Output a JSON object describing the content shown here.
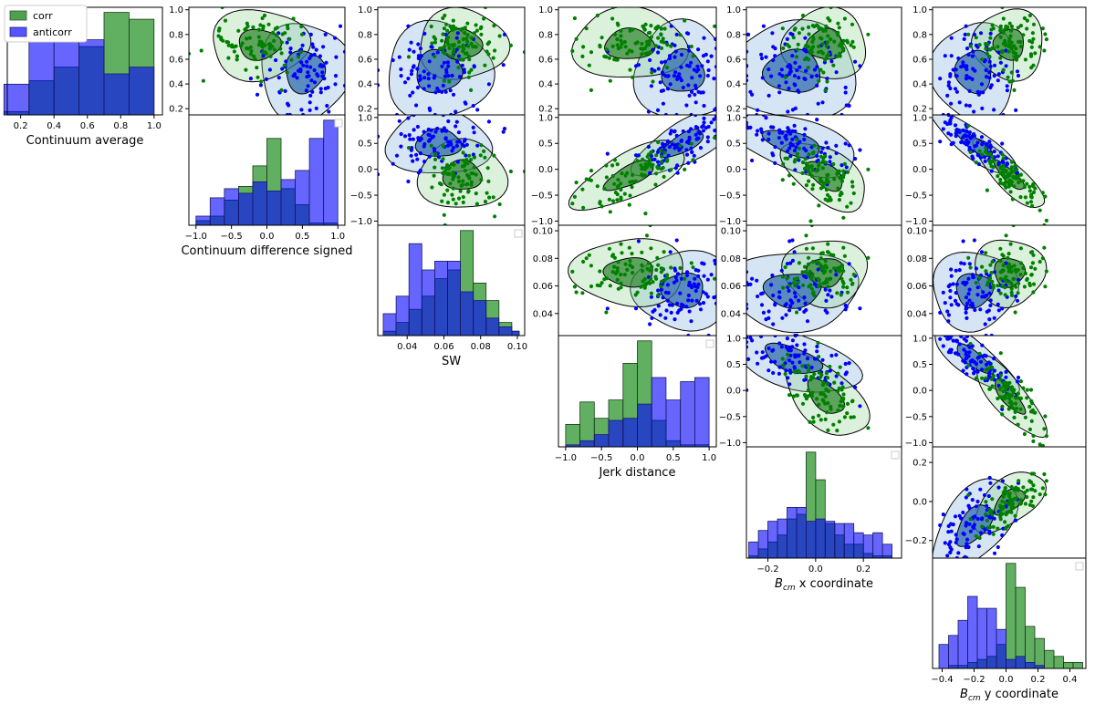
{
  "colors": {
    "corr": "#008000",
    "anticorr": "#0000ff",
    "corr_fill": "#4fa04f",
    "anticorr_fill": "#5555ff"
  },
  "legend": {
    "entries": [
      "corr",
      "anticorr"
    ]
  },
  "chart_data": [
    {
      "type": "bar",
      "variable": "continuum_average",
      "xlabel": "Continuum average",
      "xlim": [
        0.12,
        1.05
      ],
      "ticks": [
        0.2,
        0.4,
        0.6,
        0.8,
        1.0
      ],
      "tick_labels": [
        "0.2",
        "0.4",
        "0.6",
        "0.8",
        "1.0"
      ],
      "bin_edges": [
        0.1,
        0.25,
        0.4,
        0.55,
        0.7,
        0.85,
        1.0
      ],
      "series": [
        {
          "name": "corr",
          "values": [
            1,
            10,
            14,
            20,
            30,
            28
          ]
        },
        {
          "name": "anticorr",
          "values": [
            9,
            25,
            25,
            22,
            12,
            14
          ]
        }
      ]
    },
    {
      "type": "bar",
      "variable": "continuum_difference_signed",
      "xlabel": "Continuum difference signed",
      "xlim": [
        -1.1,
        1.1
      ],
      "ticks": [
        -1.0,
        -0.5,
        0.0,
        0.5,
        1.0
      ],
      "tick_labels": [
        "−1.0",
        "−0.5",
        "0.0",
        "0.5",
        "1.0"
      ],
      "bin_edges": [
        -1.0,
        -0.8,
        -0.6,
        -0.4,
        -0.2,
        0.0,
        0.2,
        0.4,
        0.6,
        0.8,
        1.0
      ],
      "series": [
        {
          "name": "corr",
          "values": [
            2,
            4,
            11,
            17,
            26,
            38,
            16,
            9,
            1,
            1
          ]
        },
        {
          "name": "anticorr",
          "values": [
            4,
            12,
            16,
            14,
            19,
            15,
            20,
            24,
            38,
            46
          ]
        }
      ]
    },
    {
      "type": "bar",
      "variable": "sw",
      "xlabel": "SW",
      "xlim": [
        0.024,
        0.104
      ],
      "ticks": [
        0.04,
        0.06,
        0.08,
        0.1
      ],
      "tick_labels": [
        "0.04",
        "0.06",
        "0.08",
        "0.10"
      ],
      "bin_edges": [
        0.027,
        0.034,
        0.041,
        0.048,
        0.055,
        0.062,
        0.069,
        0.076,
        0.083,
        0.09,
        0.097,
        0.101
      ],
      "series": [
        {
          "name": "corr",
          "values": [
            1,
            3,
            6,
            9,
            13,
            15,
            24,
            12,
            8,
            3,
            1
          ]
        },
        {
          "name": "anticorr",
          "values": [
            5,
            9,
            21,
            15,
            17,
            17,
            10,
            8,
            4,
            2,
            1
          ]
        }
      ]
    },
    {
      "type": "bar",
      "variable": "jerk_distance",
      "xlabel": "Jerk distance",
      "xlim": [
        -1.1,
        1.1
      ],
      "ticks": [
        -1.0,
        -0.5,
        0.0,
        0.5,
        1.0
      ],
      "tick_labels": [
        "−1.0",
        "−0.5",
        "0.0",
        "0.5",
        "1.0"
      ],
      "bin_edges": [
        -1.0,
        -0.8,
        -0.6,
        -0.4,
        -0.2,
        0.0,
        0.2,
        0.4,
        0.6,
        0.8,
        1.0
      ],
      "series": [
        {
          "name": "corr",
          "values": [
            11,
            22,
            14,
            23,
            41,
            52,
            13,
            3,
            1,
            1
          ]
        },
        {
          "name": "anticorr",
          "values": [
            1,
            3,
            6,
            13,
            14,
            21,
            34,
            23,
            32,
            34
          ]
        }
      ]
    },
    {
      "type": "bar",
      "variable": "bcm_x",
      "xlabel": "B_cm x coordinate",
      "xlim": [
        -0.29,
        0.36
      ],
      "ticks": [
        -0.2,
        0.0,
        0.2
      ],
      "tick_labels": [
        "−0.2",
        "0.0",
        "0.2"
      ],
      "bin_edges": [
        -0.28,
        -0.24,
        -0.2,
        -0.16,
        -0.12,
        -0.08,
        -0.04,
        0.0,
        0.04,
        0.08,
        0.12,
        0.16,
        0.2,
        0.24,
        0.28,
        0.32
      ],
      "series": [
        {
          "name": "corr",
          "values": [
            1,
            4,
            7,
            10,
            17,
            19,
            46,
            34,
            15,
            10,
            6,
            6,
            2,
            1,
            1
          ]
        },
        {
          "name": "anticorr",
          "values": [
            7,
            12,
            16,
            17,
            22,
            22,
            16,
            17,
            16,
            15,
            15,
            11,
            10,
            11,
            6
          ]
        }
      ]
    },
    {
      "type": "bar",
      "variable": "bcm_y",
      "xlabel": "B_cm y coordinate",
      "xlim": [
        -0.46,
        0.5
      ],
      "ticks": [
        -0.4,
        -0.2,
        0.0,
        0.2,
        0.4
      ],
      "tick_labels": [
        "−0.4",
        "−0.2",
        "0.0",
        "0.2",
        "0.4"
      ],
      "bin_edges": [
        -0.42,
        -0.36,
        -0.3,
        -0.24,
        -0.18,
        -0.12,
        -0.06,
        0.0,
        0.06,
        0.12,
        0.18,
        0.24,
        0.3,
        0.36,
        0.42,
        0.48
      ],
      "series": [
        {
          "name": "corr",
          "values": [
            0,
            1,
            1,
            2,
            3,
            4,
            8,
            35,
            27,
            14,
            10,
            6,
            4,
            2,
            2
          ]
        },
        {
          "name": "anticorr",
          "values": [
            8,
            11,
            16,
            24,
            20,
            20,
            13,
            3,
            4,
            2,
            1,
            0,
            0,
            0,
            0
          ]
        }
      ]
    },
    {
      "type": "scatter",
      "panel": "pairwise_kde_scatter",
      "variables": [
        "continuum_average",
        "continuum_difference_signed",
        "sw",
        "jerk_distance",
        "bcm_x",
        "bcm_y"
      ],
      "layout": "upper-triangle",
      "ranges": [
        [
          0.15,
          1.02
        ],
        [
          -1.08,
          1.05
        ],
        [
          0.024,
          0.104
        ],
        [
          -1.08,
          1.05
        ],
        [
          -0.29,
          0.28
        ],
        [
          -0.46,
          0.5
        ]
      ],
      "off_diagonal_ticks": [
        [
          0.2,
          0.4,
          0.6,
          0.8,
          1.0
        ],
        [
          -1.0,
          -0.5,
          0.0,
          0.5,
          1.0
        ],
        [
          0.04,
          0.06,
          0.08,
          0.1
        ],
        [
          -1.0,
          -0.5,
          0.0,
          0.5,
          1.0
        ],
        [
          -0.2,
          0.0,
          0.2
        ],
        [
          -0.4,
          -0.2,
          0.0,
          0.2,
          0.4
        ]
      ],
      "off_diagonal_tick_labels": [
        [
          "0.2",
          "0.4",
          "0.6",
          "0.8",
          "1.0"
        ],
        [
          "−1.0",
          "−0.5",
          "0.0",
          "0.5",
          "1.0"
        ],
        [
          "0.04",
          "0.06",
          "0.08",
          "0.10"
        ],
        [
          "−1.0",
          "−0.5",
          "0.0",
          "0.5",
          "1.0"
        ],
        [
          "−0.2",
          "0.0",
          "0.2"
        ],
        [
          "−0.4",
          "−0.2",
          "0.0",
          "0.2",
          "0.4"
        ]
      ],
      "cluster_centers": {
        "corr": [
          0.72,
          -0.12,
          0.07,
          -0.12,
          0.0,
          0.02
        ],
        "anticorr": [
          0.5,
          0.5,
          0.057,
          0.6,
          -0.12,
          -0.2
        ]
      },
      "cluster_spread": {
        "corr": [
          0.13,
          0.3,
          0.011,
          0.35,
          0.07,
          0.1
        ],
        "anticorr": [
          0.18,
          0.28,
          0.013,
          0.3,
          0.11,
          0.12
        ]
      },
      "cluster_correlation": [
        [
          0,
          0,
          0,
          0,
          0,
          0
        ],
        [
          0,
          0,
          0,
          0.7,
          -0.55,
          -0.85
        ],
        [
          0,
          0,
          0,
          0,
          0,
          0
        ],
        [
          0,
          0.7,
          0,
          0,
          -0.55,
          -0.8
        ],
        [
          0,
          -0.55,
          0,
          -0.55,
          0,
          0.55
        ],
        [
          0,
          -0.85,
          0,
          -0.8,
          0.55,
          0
        ]
      ],
      "points_per_group": 90
    }
  ]
}
